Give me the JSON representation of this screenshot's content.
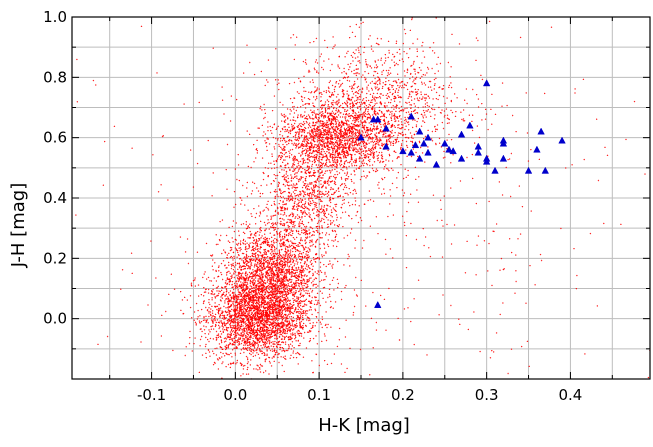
{
  "chart_data": {
    "type": "scatter",
    "title": "",
    "xlabel": "H-K [mag]",
    "ylabel": "J-H [mag]",
    "xlim": [
      -0.195,
      0.495
    ],
    "ylim": [
      -0.2,
      1.0
    ],
    "xticks": [
      -0.1,
      0.0,
      0.1,
      0.2,
      0.3,
      0.4
    ],
    "xtick_labels": [
      "-0.1",
      "0.0",
      "0.1",
      "0.2",
      "0.3",
      "0.4"
    ],
    "yticks": [
      0.0,
      0.2,
      0.4,
      0.6,
      0.8,
      1.0
    ],
    "ytick_labels": [
      "0.0",
      "0.2",
      "0.4",
      "0.6",
      "0.8",
      "1.0"
    ],
    "grid": true,
    "legend": "none",
    "series": [
      {
        "marker": "dot",
        "color": "#ff0000",
        "description_distribution": [
          {
            "center_x": 0.025,
            "center_y": 0.0,
            "spread_x": 0.03,
            "spread_y": 0.07,
            "count": 2600
          },
          {
            "center_x": 0.045,
            "center_y": 0.15,
            "spread_x": 0.03,
            "spread_y": 0.08,
            "count": 2000
          },
          {
            "center_x": 0.085,
            "center_y": 0.4,
            "spread_x": 0.028,
            "spread_y": 0.08,
            "count": 900
          },
          {
            "center_x": 0.12,
            "center_y": 0.6,
            "spread_x": 0.035,
            "spread_y": 0.06,
            "count": 1800
          },
          {
            "center_x": 0.17,
            "center_y": 0.72,
            "spread_x": 0.05,
            "spread_y": 0.1,
            "count": 1100
          },
          {
            "center_x": 0.15,
            "center_y": 0.3,
            "spread_x": 0.15,
            "spread_y": 0.35,
            "count": 500
          }
        ]
      },
      {
        "marker": "triangle",
        "color": "#0000cc",
        "points": [
          [
            0.15,
            0.6
          ],
          [
            0.165,
            0.66
          ],
          [
            0.17,
            0.66
          ],
          [
            0.18,
            0.63
          ],
          [
            0.18,
            0.57
          ],
          [
            0.2,
            0.555
          ],
          [
            0.21,
            0.67
          ],
          [
            0.21,
            0.55
          ],
          [
            0.215,
            0.575
          ],
          [
            0.22,
            0.62
          ],
          [
            0.22,
            0.53
          ],
          [
            0.225,
            0.58
          ],
          [
            0.23,
            0.6
          ],
          [
            0.23,
            0.55
          ],
          [
            0.24,
            0.51
          ],
          [
            0.25,
            0.58
          ],
          [
            0.255,
            0.56
          ],
          [
            0.26,
            0.555
          ],
          [
            0.27,
            0.61
          ],
          [
            0.27,
            0.53
          ],
          [
            0.28,
            0.64
          ],
          [
            0.29,
            0.57
          ],
          [
            0.29,
            0.55
          ],
          [
            0.3,
            0.78
          ],
          [
            0.3,
            0.53
          ],
          [
            0.3,
            0.52
          ],
          [
            0.31,
            0.49
          ],
          [
            0.32,
            0.59
          ],
          [
            0.32,
            0.58
          ],
          [
            0.32,
            0.53
          ],
          [
            0.35,
            0.49
          ],
          [
            0.36,
            0.56
          ],
          [
            0.365,
            0.62
          ],
          [
            0.37,
            0.49
          ],
          [
            0.39,
            0.59
          ],
          [
            0.17,
            0.045
          ]
        ]
      }
    ]
  }
}
